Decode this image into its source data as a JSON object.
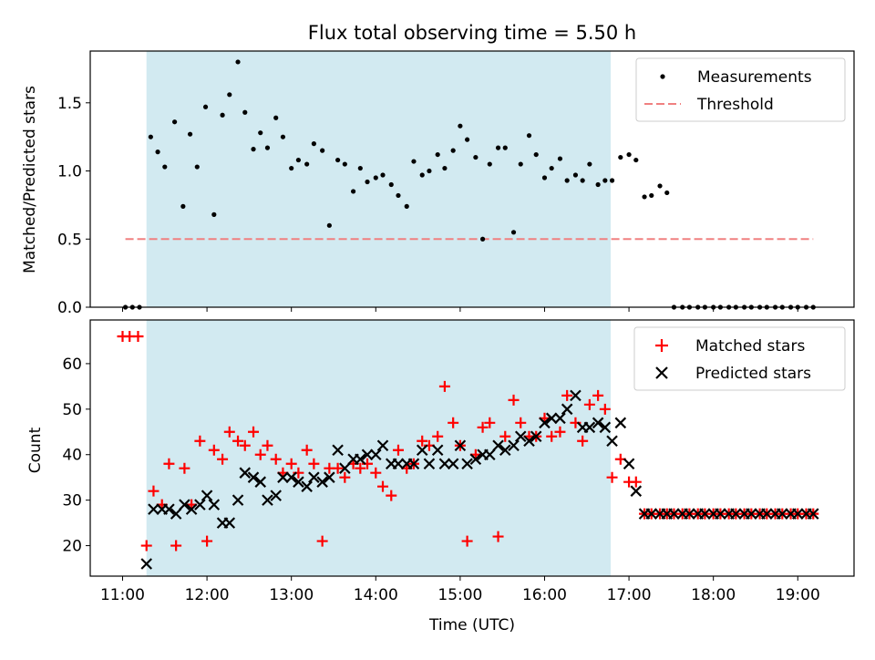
{
  "title": "Flux total observing time = 5.50 h",
  "xlabel": "Time (UTC)",
  "colors": {
    "shade": "#add8e6",
    "measurement": "#000000",
    "threshold": "#f08080",
    "matched": "#ff0000",
    "predicted": "#000000"
  },
  "chart_data": [
    {
      "type": "scatter",
      "panel": "top",
      "ylabel": "Matched/Predicted stars",
      "xlim": [
        "10:37",
        "19:40"
      ],
      "ylim": [
        0,
        1.88
      ],
      "yticks": [
        "0.0",
        "0.5",
        "1.0",
        "1.5"
      ],
      "xtick_labels": [],
      "grid": false,
      "legend": {
        "placement": "top-right",
        "entries": [
          "Measurements",
          "Threshold"
        ]
      },
      "shaded_interval": [
        "11:17",
        "16:47"
      ],
      "threshold": {
        "name": "Threshold",
        "value": 0.5,
        "x_range": [
          "11:02",
          "19:11"
        ]
      },
      "series": [
        {
          "name": "Measurements",
          "marker": "dot",
          "x": [
            "11:02",
            "11:07",
            "11:12",
            "11:20",
            "11:25",
            "11:30",
            "11:37",
            "11:43",
            "11:48",
            "11:53",
            "11:59",
            "12:05",
            "12:11",
            "12:16",
            "12:22",
            "12:27",
            "12:33",
            "12:38",
            "12:43",
            "12:49",
            "12:54",
            "13:00",
            "13:05",
            "13:11",
            "13:16",
            "13:22",
            "13:27",
            "13:33",
            "13:38",
            "13:44",
            "13:49",
            "13:54",
            "14:00",
            "14:05",
            "14:11",
            "14:16",
            "14:22",
            "14:27",
            "14:33",
            "14:38",
            "14:44",
            "14:49",
            "14:55",
            "15:00",
            "15:05",
            "15:11",
            "15:16",
            "15:21",
            "15:27",
            "15:32",
            "15:38",
            "15:43",
            "15:49",
            "15:54",
            "16:00",
            "16:05",
            "16:11",
            "16:16",
            "16:22",
            "16:27",
            "16:32",
            "16:38",
            "16:43",
            "16:48",
            "16:54",
            "17:00",
            "17:05",
            "17:11",
            "17:16",
            "17:22",
            "17:27",
            "17:32",
            "17:38",
            "17:43",
            "17:49",
            "17:54",
            "18:00",
            "18:05",
            "18:11",
            "18:16",
            "18:22",
            "18:27",
            "18:33",
            "18:38",
            "18:44",
            "18:49",
            "18:55",
            "19:00",
            "19:06",
            "19:11"
          ],
          "y": [
            0,
            0,
            0,
            1.25,
            1.14,
            1.03,
            1.36,
            0.74,
            1.27,
            1.03,
            1.47,
            0.68,
            1.41,
            1.56,
            1.8,
            1.43,
            1.16,
            1.28,
            1.17,
            1.39,
            1.25,
            1.02,
            1.08,
            1.05,
            1.2,
            1.15,
            0.6,
            1.08,
            1.05,
            0.85,
            1.02,
            0.92,
            0.95,
            0.97,
            0.9,
            0.82,
            0.74,
            1.07,
            0.97,
            1.0,
            1.12,
            1.02,
            1.15,
            1.33,
            1.23,
            1.1,
            0.5,
            1.05,
            1.17,
            1.17,
            0.55,
            1.05,
            1.26,
            1.12,
            0.95,
            1.02,
            1.09,
            0.93,
            0.97,
            0.93,
            1.05,
            0.9,
            0.93,
            0.93,
            1.1,
            1.12,
            1.08,
            0.81,
            0.82,
            0.89,
            0.84,
            0,
            0,
            0,
            0,
            0,
            0,
            0,
            0,
            0,
            0,
            0,
            0,
            0,
            0,
            0,
            0,
            0,
            0,
            0
          ]
        }
      ]
    },
    {
      "type": "scatter",
      "panel": "bottom",
      "ylabel": "Count",
      "xlim": [
        "10:37",
        "19:40"
      ],
      "ylim": [
        13.3,
        69.6
      ],
      "yticks": [
        "20",
        "30",
        "40",
        "50",
        "60"
      ],
      "xtick_labels": [
        "11:00",
        "12:00",
        "13:00",
        "14:00",
        "15:00",
        "16:00",
        "17:00",
        "18:00",
        "19:00"
      ],
      "grid": false,
      "legend": {
        "placement": "top-right",
        "entries": [
          "Matched stars",
          "Predicted stars"
        ]
      },
      "shaded_interval": [
        "11:17",
        "16:47"
      ],
      "series": [
        {
          "name": "Matched stars",
          "marker": "plus",
          "x": [
            "11:00",
            "11:05",
            "11:11",
            "11:17",
            "11:22",
            "11:28",
            "11:33",
            "11:38",
            "11:44",
            "11:49",
            "11:55",
            "12:00",
            "12:05",
            "12:11",
            "12:16",
            "12:22",
            "12:27",
            "12:33",
            "12:38",
            "12:43",
            "12:49",
            "12:54",
            "13:00",
            "13:05",
            "13:11",
            "13:16",
            "13:22",
            "13:27",
            "13:33",
            "13:38",
            "13:44",
            "13:49",
            "13:54",
            "14:00",
            "14:05",
            "14:11",
            "14:16",
            "14:22",
            "14:27",
            "14:33",
            "14:38",
            "14:44",
            "14:49",
            "14:55",
            "15:00",
            "15:05",
            "15:11",
            "15:16",
            "15:21",
            "15:27",
            "15:32",
            "15:38",
            "15:43",
            "15:49",
            "15:54",
            "16:00",
            "16:05",
            "16:11",
            "16:16",
            "16:22",
            "16:27",
            "16:32",
            "16:38",
            "16:43",
            "16:48",
            "16:54",
            "17:00",
            "17:05",
            "17:11",
            "17:16",
            "17:22",
            "17:27",
            "17:32",
            "17:38",
            "17:43",
            "17:49",
            "17:54",
            "18:00",
            "18:05",
            "18:11",
            "18:16",
            "18:22",
            "18:27",
            "18:33",
            "18:38",
            "18:44",
            "18:49",
            "18:55",
            "19:00",
            "19:06",
            "19:11"
          ],
          "y": [
            66,
            66,
            66,
            20,
            32,
            29,
            38,
            20,
            37,
            29,
            43,
            21,
            41,
            39,
            45,
            43,
            42,
            45,
            40,
            42,
            39,
            36,
            38,
            36,
            41,
            38,
            21,
            37,
            37,
            35,
            38,
            37,
            38,
            36,
            33,
            31,
            41,
            37,
            38,
            43,
            42,
            44,
            55,
            47,
            42,
            21,
            40,
            46,
            47,
            22,
            44,
            52,
            47,
            44,
            44,
            48,
            44,
            45,
            53,
            47,
            43,
            51,
            53,
            50,
            35,
            39,
            34,
            34,
            27,
            27,
            27,
            27,
            27,
            27,
            27,
            27,
            27,
            27,
            27,
            27,
            27,
            27,
            27,
            27,
            27,
            27,
            27,
            27,
            27,
            27,
            27
          ]
        },
        {
          "name": "Predicted stars",
          "marker": "x",
          "x": [
            "11:17",
            "11:22",
            "11:28",
            "11:33",
            "11:38",
            "11:44",
            "11:49",
            "11:55",
            "12:00",
            "12:05",
            "12:11",
            "12:16",
            "12:22",
            "12:27",
            "12:33",
            "12:38",
            "12:43",
            "12:49",
            "12:54",
            "13:00",
            "13:05",
            "13:11",
            "13:16",
            "13:22",
            "13:27",
            "13:33",
            "13:38",
            "13:44",
            "13:49",
            "13:54",
            "14:00",
            "14:05",
            "14:11",
            "14:16",
            "14:22",
            "14:27",
            "14:33",
            "14:38",
            "14:44",
            "14:49",
            "14:55",
            "15:00",
            "15:05",
            "15:11",
            "15:16",
            "15:21",
            "15:27",
            "15:32",
            "15:38",
            "15:43",
            "15:49",
            "15:54",
            "16:00",
            "16:05",
            "16:11",
            "16:16",
            "16:22",
            "16:27",
            "16:32",
            "16:38",
            "16:43",
            "16:48",
            "16:54",
            "17:00",
            "17:05",
            "17:11",
            "17:16",
            "17:22",
            "17:27",
            "17:32",
            "17:38",
            "17:43",
            "17:49",
            "17:54",
            "18:00",
            "18:05",
            "18:11",
            "18:16",
            "18:22",
            "18:27",
            "18:33",
            "18:38",
            "18:44",
            "18:49",
            "18:55",
            "19:00",
            "19:06",
            "19:11"
          ],
          "y": [
            16,
            28,
            28,
            28,
            27,
            29,
            28,
            29,
            31,
            29,
            25,
            25,
            30,
            36,
            35,
            34,
            30,
            31,
            35,
            35,
            34,
            33,
            35,
            34,
            35,
            41,
            37,
            39,
            39,
            40,
            40,
            42,
            38,
            38,
            38,
            38,
            41,
            38,
            41,
            38,
            38,
            42,
            38,
            39,
            40,
            40,
            42,
            41,
            42,
            44,
            43,
            44,
            47,
            48,
            48,
            50,
            53,
            46,
            46,
            47,
            46,
            43,
            47,
            38,
            32,
            27,
            27,
            27,
            27,
            27,
            27,
            27,
            27,
            27,
            27,
            27,
            27,
            27,
            27,
            27,
            27,
            27,
            27,
            27,
            27,
            27,
            27,
            27
          ]
        }
      ]
    }
  ]
}
